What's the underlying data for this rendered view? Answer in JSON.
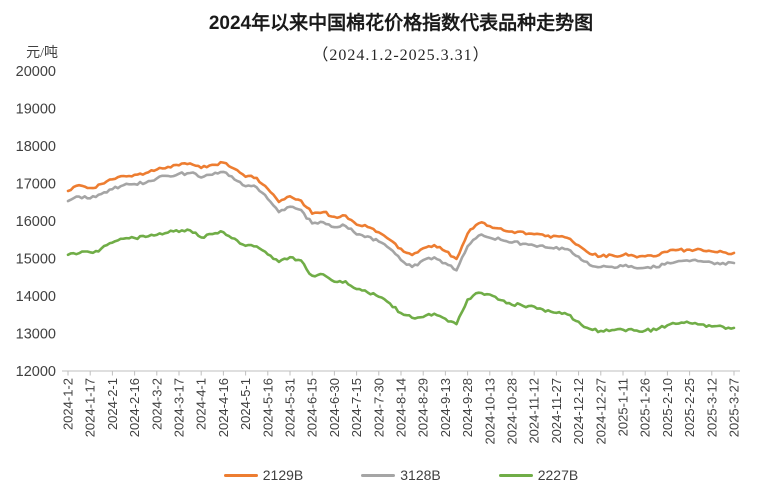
{
  "title": {
    "year": "2024",
    "text": "年以来中国棉花价格指数代表品种走势图"
  },
  "subtitle": "（2024.1.2-2025.3.31）",
  "y_axis_unit": "元/吨",
  "chart_data": {
    "type": "line",
    "title": "2024年以来中国棉花价格指数代表品种走势图（2024.1.2-2025.3.31）",
    "ylabel": "元/吨",
    "ylim": [
      12000,
      20000
    ],
    "y_ticks": [
      20000,
      19000,
      18000,
      17000,
      16000,
      15000,
      14000,
      13000,
      12000
    ],
    "grid": false,
    "legend_position": "bottom",
    "x_tick_labels": [
      "2024-1-2",
      "2024-1-17",
      "2024-2-1",
      "2024-2-16",
      "2024-3-2",
      "2024-3-17",
      "2024-4-1",
      "2024-4-16",
      "2024-5-1",
      "2024-5-16",
      "2024-5-31",
      "2024-6-15",
      "2024-6-30",
      "2024-7-15",
      "2024-7-30",
      "2024-8-14",
      "2024-8-29",
      "2024-9-13",
      "2024-9-28",
      "2024-10-13",
      "2024-10-28",
      "2024-11-12",
      "2024-11-27",
      "2024-12-12",
      "2024-12-27",
      "2025-1-11",
      "2025-1-26",
      "2025-2-10",
      "2025-2-25",
      "2025-3-12",
      "2025-3-27"
    ],
    "samples_per_tick_interval": 2,
    "series": [
      {
        "name": "2129B",
        "color": "#ED7D31",
        "values": [
          16800,
          16960,
          16870,
          16980,
          17100,
          17200,
          17230,
          17280,
          17380,
          17450,
          17500,
          17530,
          17420,
          17500,
          17550,
          17380,
          17180,
          17150,
          16850,
          16500,
          16650,
          16550,
          16200,
          16250,
          16100,
          16150,
          15900,
          15850,
          15700,
          15500,
          15250,
          15100,
          15280,
          15350,
          15200,
          15000,
          15680,
          15950,
          15860,
          15800,
          15730,
          15700,
          15640,
          15600,
          15590,
          15550,
          15350,
          15120,
          15060,
          15080,
          15100,
          15070,
          15060,
          15070,
          15190,
          15220,
          15240,
          15230,
          15190,
          15170,
          15150
        ]
      },
      {
        "name": "3128B",
        "color": "#A5A5A5",
        "values": [
          16530,
          16660,
          16600,
          16730,
          16850,
          16950,
          16980,
          17030,
          17130,
          17200,
          17250,
          17280,
          17170,
          17250,
          17300,
          17120,
          16920,
          16900,
          16600,
          16230,
          16380,
          16280,
          15930,
          15980,
          15830,
          15880,
          15630,
          15580,
          15450,
          15250,
          14950,
          14760,
          14950,
          15020,
          14870,
          14680,
          15330,
          15620,
          15560,
          15500,
          15430,
          15400,
          15340,
          15300,
          15290,
          15250,
          15050,
          14820,
          14760,
          14780,
          14800,
          14770,
          14760,
          14770,
          14890,
          14920,
          14940,
          14930,
          14890,
          14870,
          14880
        ]
      },
      {
        "name": "2227B",
        "color": "#70AD47",
        "values": [
          15100,
          15150,
          15160,
          15250,
          15430,
          15520,
          15550,
          15580,
          15640,
          15700,
          15720,
          15750,
          15560,
          15650,
          15700,
          15530,
          15350,
          15330,
          15100,
          14900,
          15030,
          14950,
          14530,
          14580,
          14380,
          14400,
          14180,
          14100,
          13980,
          13800,
          13550,
          13420,
          13450,
          13520,
          13380,
          13250,
          13900,
          14100,
          14050,
          13900,
          13780,
          13750,
          13710,
          13600,
          13540,
          13500,
          13300,
          13120,
          13060,
          13080,
          13100,
          13080,
          13090,
          13100,
          13230,
          13270,
          13280,
          13250,
          13190,
          13170,
          13150
        ]
      }
    ]
  }
}
